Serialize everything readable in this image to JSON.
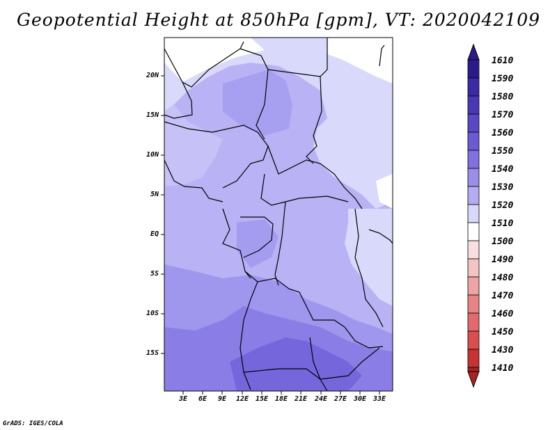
{
  "title": "Geopotential Height at 850hPa [gpm], VT: 2020042109",
  "credit": "GrADS: IGES/COLA",
  "map": {
    "lat_labels": [
      "20N",
      "15N",
      "10N",
      "5N",
      "EQ",
      "5S",
      "10S",
      "15S"
    ],
    "lon_labels": [
      "3E",
      "6E",
      "9E",
      "12E",
      "15E",
      "18E",
      "21E",
      "24E",
      "27E",
      "30E",
      "33E"
    ]
  },
  "colorbar": {
    "levels": [
      {
        "value": "1610",
        "color": "#2a1a8c"
      },
      {
        "value": "1590",
        "color": "#3a2aa6"
      },
      {
        "value": "1580",
        "color": "#4838b8"
      },
      {
        "value": "1570",
        "color": "#5848c8"
      },
      {
        "value": "1560",
        "color": "#6a5ad6"
      },
      {
        "value": "1550",
        "color": "#8070e0"
      },
      {
        "value": "1540",
        "color": "#9a8eea"
      },
      {
        "value": "1530",
        "color": "#b4acf2"
      },
      {
        "value": "1520",
        "color": "#d8d8fa"
      },
      {
        "value": "1510",
        "color": "#ffffff"
      },
      {
        "value": "1500",
        "color": "#f8dede"
      },
      {
        "value": "1490",
        "color": "#f4c4c4"
      },
      {
        "value": "1480",
        "color": "#eea4a4"
      },
      {
        "value": "1470",
        "color": "#e88484"
      },
      {
        "value": "1460",
        "color": "#e26a6a"
      },
      {
        "value": "1450",
        "color": "#dc4e4e"
      },
      {
        "value": "1430",
        "color": "#c83232"
      },
      {
        "value": "1410",
        "color": "#a82222"
      }
    ]
  }
}
